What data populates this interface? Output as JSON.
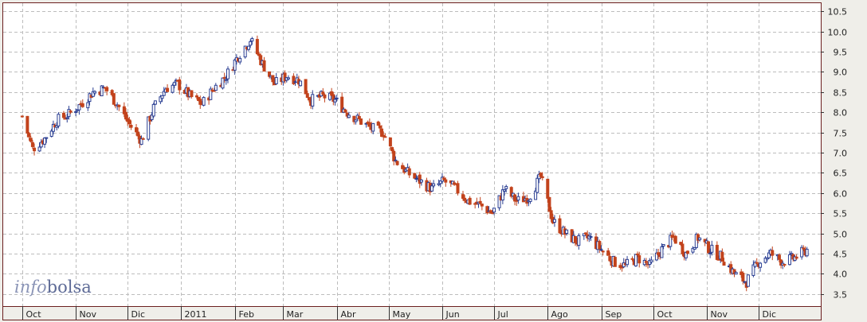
{
  "brand": {
    "part1": "info",
    "part2": "bolsa"
  },
  "colors": {
    "up": "#2b3f93",
    "down": "#c2431c",
    "grid": "#bdbdbd",
    "frame": "#6b1f1f",
    "plot_bg": "#ffffff",
    "axis_bg": "#efeee9"
  },
  "chart_data": {
    "type": "candlestick",
    "y_axis_position": "right",
    "ylim": [
      3.2,
      10.7
    ],
    "y_ticks": [
      3.5,
      4.0,
      4.5,
      5.0,
      5.5,
      6.0,
      6.5,
      7.0,
      7.5,
      8.0,
      8.5,
      9.0,
      9.5,
      10.0,
      10.5
    ],
    "y_tick_labels": [
      "3.5",
      "4.0",
      "4.5",
      "5.0",
      "5.5",
      "6.0",
      "6.5",
      "7.0",
      "7.5",
      "8.0",
      "8.5",
      "9.0",
      "9.5",
      "10.0",
      "10.5"
    ],
    "x_month_labels": [
      "Oct",
      "Nov",
      "Dic",
      "2011",
      "Feb",
      "Mar",
      "Abr",
      "May",
      "Jun",
      "Jul",
      "Ago",
      "Sep",
      "Oct",
      "Nov",
      "Dic"
    ],
    "grid": true,
    "series_trend": {
      "x": [
        "2010-10-01",
        "2010-10-07",
        "2010-10-14",
        "2010-10-21",
        "2010-10-28",
        "2010-11-04",
        "2010-11-11",
        "2010-11-18",
        "2010-11-25",
        "2010-12-02",
        "2010-12-09",
        "2010-12-16",
        "2010-12-23",
        "2010-12-30",
        "2011-01-06",
        "2011-01-13",
        "2011-01-20",
        "2011-01-27",
        "2011-02-03",
        "2011-02-10",
        "2011-02-17",
        "2011-02-24",
        "2011-03-03",
        "2011-03-10",
        "2011-03-17",
        "2011-03-24",
        "2011-03-31",
        "2011-04-07",
        "2011-04-14",
        "2011-04-21",
        "2011-04-28",
        "2011-05-05",
        "2011-05-12",
        "2011-05-19",
        "2011-05-26",
        "2011-06-02",
        "2011-06-09",
        "2011-06-16",
        "2011-06-23",
        "2011-06-30",
        "2011-07-07",
        "2011-07-14",
        "2011-07-21",
        "2011-07-28",
        "2011-08-04",
        "2011-08-11",
        "2011-08-18",
        "2011-08-25",
        "2011-09-01",
        "2011-09-08",
        "2011-09-15",
        "2011-09-22",
        "2011-09-29",
        "2011-10-06",
        "2011-10-13",
        "2011-10-20",
        "2011-10-27",
        "2011-11-03",
        "2011-11-10",
        "2011-11-17",
        "2011-11-24",
        "2011-12-01",
        "2011-12-08",
        "2011-12-15",
        "2011-12-22",
        "2011-12-29"
      ],
      "close": [
        7.9,
        7.1,
        7.35,
        7.8,
        7.95,
        8.2,
        8.5,
        8.6,
        8.2,
        7.7,
        7.3,
        8.1,
        8.6,
        8.7,
        8.4,
        8.2,
        8.6,
        8.9,
        9.4,
        9.8,
        9.2,
        8.7,
        8.9,
        8.8,
        8.3,
        8.4,
        8.3,
        8.0,
        7.8,
        7.6,
        7.5,
        6.8,
        6.5,
        6.3,
        6.1,
        6.3,
        6.1,
        5.8,
        5.7,
        5.5,
        6.1,
        5.8,
        5.9,
        6.4,
        5.3,
        5.0,
        4.8,
        4.9,
        4.6,
        4.3,
        4.2,
        4.4,
        4.2,
        4.6,
        4.9,
        4.5,
        4.9,
        4.6,
        4.4,
        4.0,
        3.8,
        4.3,
        4.5,
        4.3,
        4.4,
        4.6
      ]
    }
  }
}
